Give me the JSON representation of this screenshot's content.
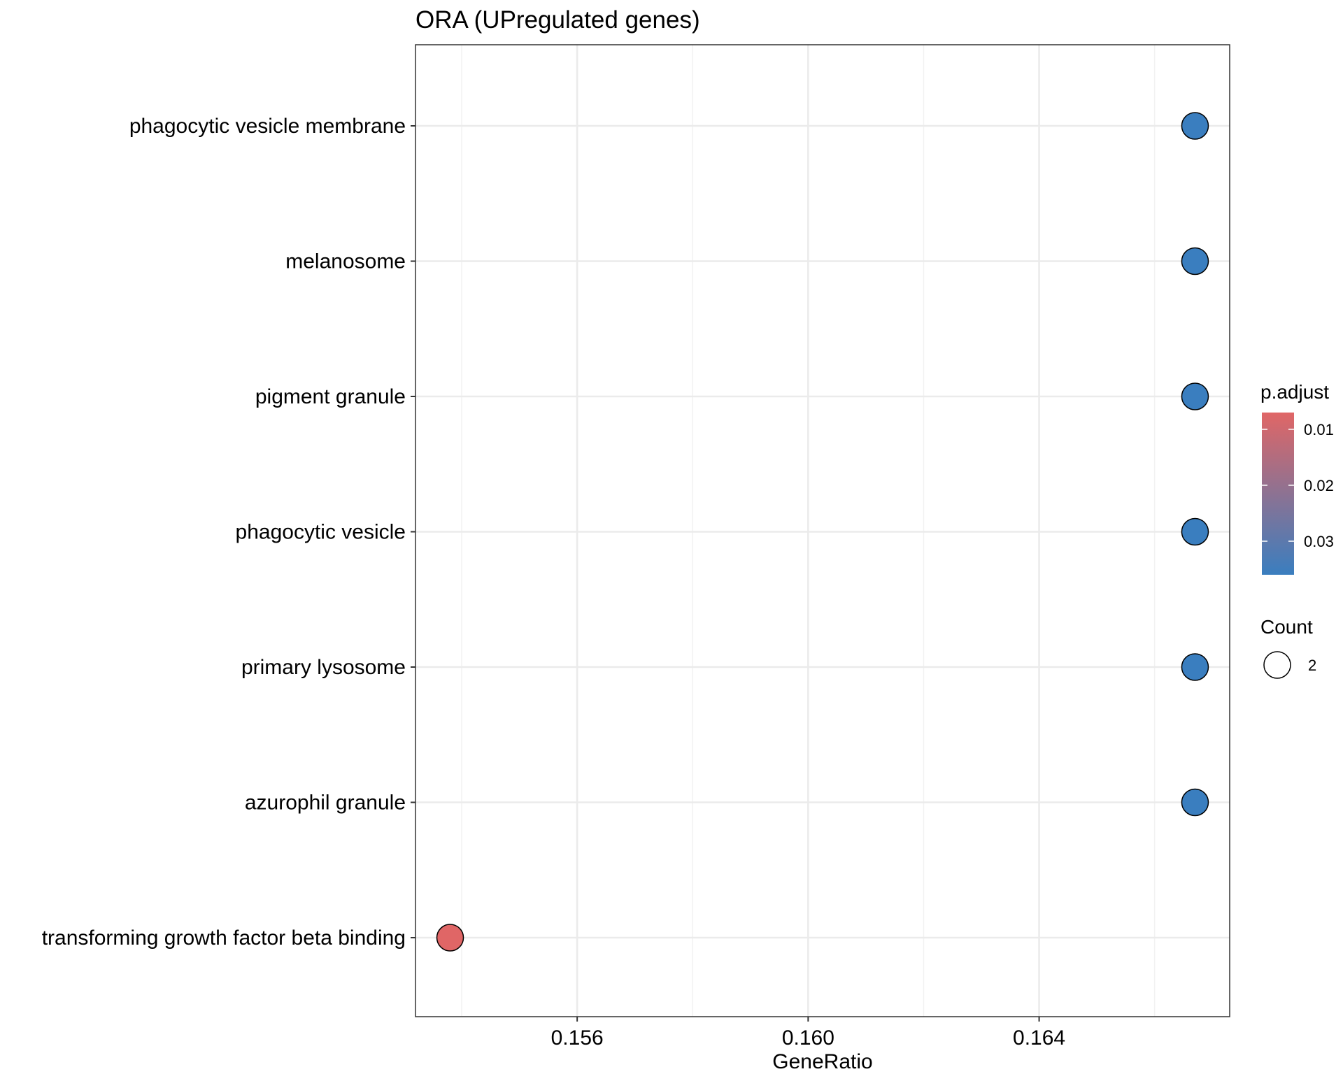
{
  "chart_data": {
    "type": "scatter",
    "title": "ORA (UPregulated genes)",
    "xlabel": "GeneRatio",
    "ylabel": "",
    "xlim": [
      0.1532,
      0.1673
    ],
    "xticks": [
      0.156,
      0.16,
      0.164
    ],
    "xtick_labels": [
      "0.156",
      "0.160",
      "0.164"
    ],
    "grid": true,
    "categories": [
      "phagocytic vesicle membrane",
      "melanosome",
      "pigment granule",
      "phagocytic vesicle",
      "primary lysosome",
      "azurophil granule",
      "transforming growth factor beta binding"
    ],
    "points": [
      {
        "term": "phagocytic vesicle membrane",
        "gene_ratio": 0.1667,
        "p_adjust": 0.036,
        "count": 2
      },
      {
        "term": "melanosome",
        "gene_ratio": 0.1667,
        "p_adjust": 0.036,
        "count": 2
      },
      {
        "term": "pigment granule",
        "gene_ratio": 0.1667,
        "p_adjust": 0.036,
        "count": 2
      },
      {
        "term": "phagocytic vesicle",
        "gene_ratio": 0.1667,
        "p_adjust": 0.036,
        "count": 2
      },
      {
        "term": "primary lysosome",
        "gene_ratio": 0.1667,
        "p_adjust": 0.036,
        "count": 2
      },
      {
        "term": "azurophil granule",
        "gene_ratio": 0.1667,
        "p_adjust": 0.036,
        "count": 2
      },
      {
        "term": "transforming growth factor beta binding",
        "gene_ratio": 0.1538,
        "p_adjust": 0.007,
        "count": 2
      }
    ],
    "color_legend": {
      "title": "p.adjust",
      "range": [
        0.007,
        0.036
      ],
      "ticks": [
        0.01,
        0.02,
        0.03
      ],
      "tick_labels": [
        "0.01",
        "0.02",
        "0.03"
      ],
      "low_color": "#e06666",
      "high_color": "#3a7ebf"
    },
    "size_legend": {
      "title": "Count",
      "values": [
        2
      ],
      "labels": [
        "2"
      ]
    },
    "legend_position": "right"
  }
}
